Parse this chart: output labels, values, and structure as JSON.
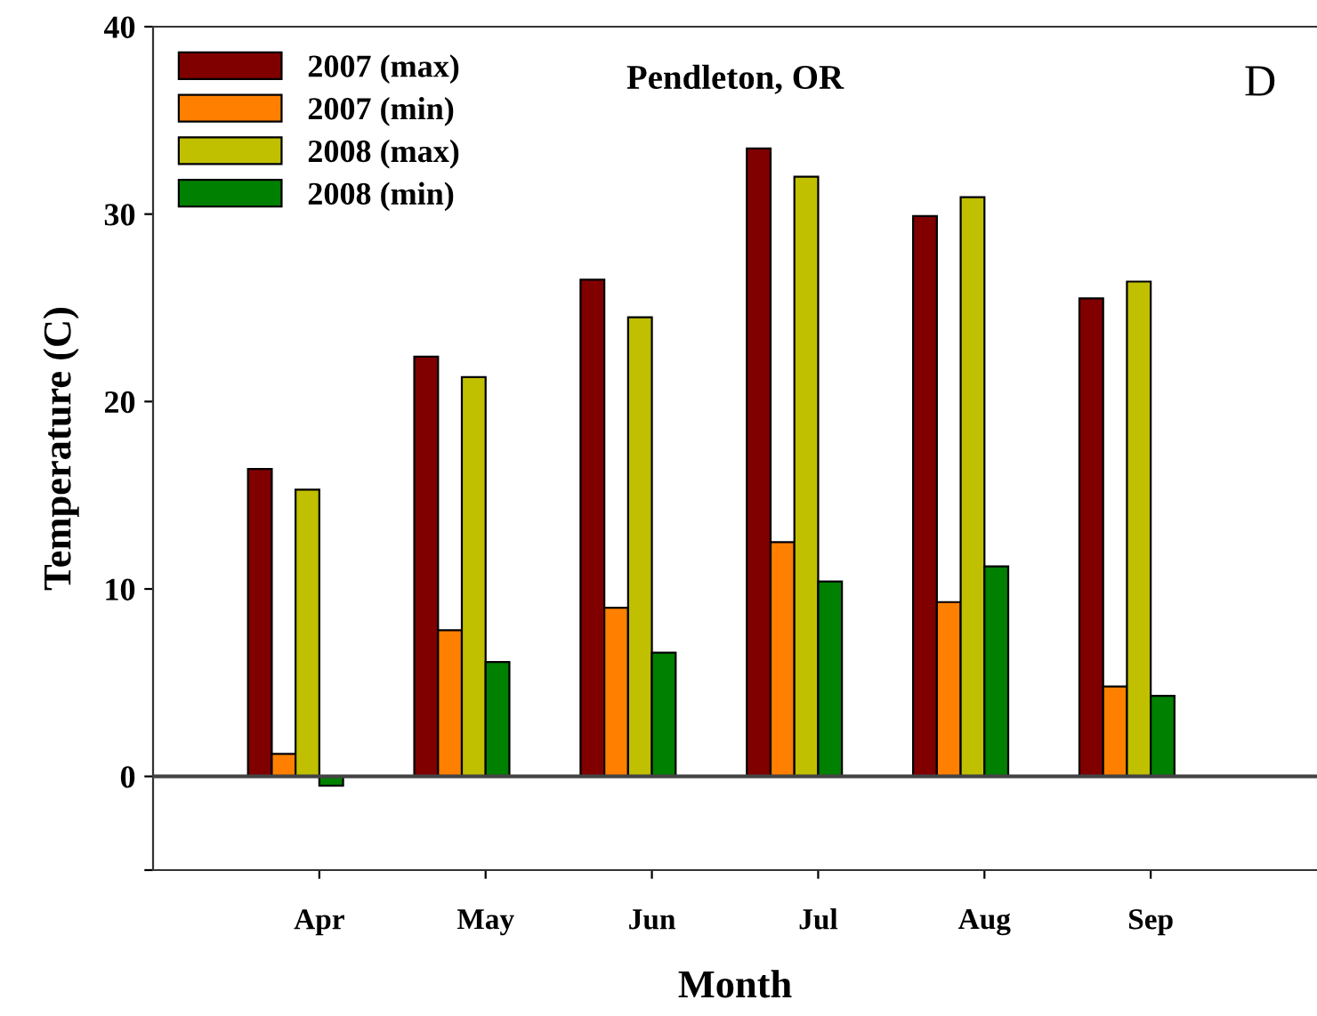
{
  "chart_data": {
    "type": "bar",
    "title": "Pendleton, OR",
    "xlabel": "Month",
    "ylabel": "Temperature (C)",
    "annotations": [
      "D"
    ],
    "categories": [
      "Apr",
      "May",
      "Jun",
      "Jul",
      "Aug",
      "Sep"
    ],
    "series": [
      {
        "name": "2007 (max)",
        "color": "#800000",
        "values": [
          16.4,
          22.4,
          26.5,
          33.5,
          29.9,
          25.5
        ]
      },
      {
        "name": "2007 (min)",
        "color": "#ff8000",
        "values": [
          1.2,
          7.8,
          9.0,
          12.5,
          9.3,
          4.8
        ]
      },
      {
        "name": "2008 (max)",
        "color": "#c0c000",
        "values": [
          15.3,
          21.3,
          24.5,
          32.0,
          30.9,
          26.4
        ]
      },
      {
        "name": "2008 (min)",
        "color": "#008000",
        "values": [
          -0.5,
          6.1,
          6.6,
          10.4,
          11.2,
          4.3
        ]
      }
    ],
    "ylim": [
      -5,
      40
    ],
    "yticks": [
      {
        "value": -5,
        "label": null
      },
      0,
      10,
      20,
      30,
      40
    ],
    "ref_lines": [
      {
        "axis": "y",
        "value": 0
      }
    ],
    "grid": false,
    "legend": "top left"
  }
}
